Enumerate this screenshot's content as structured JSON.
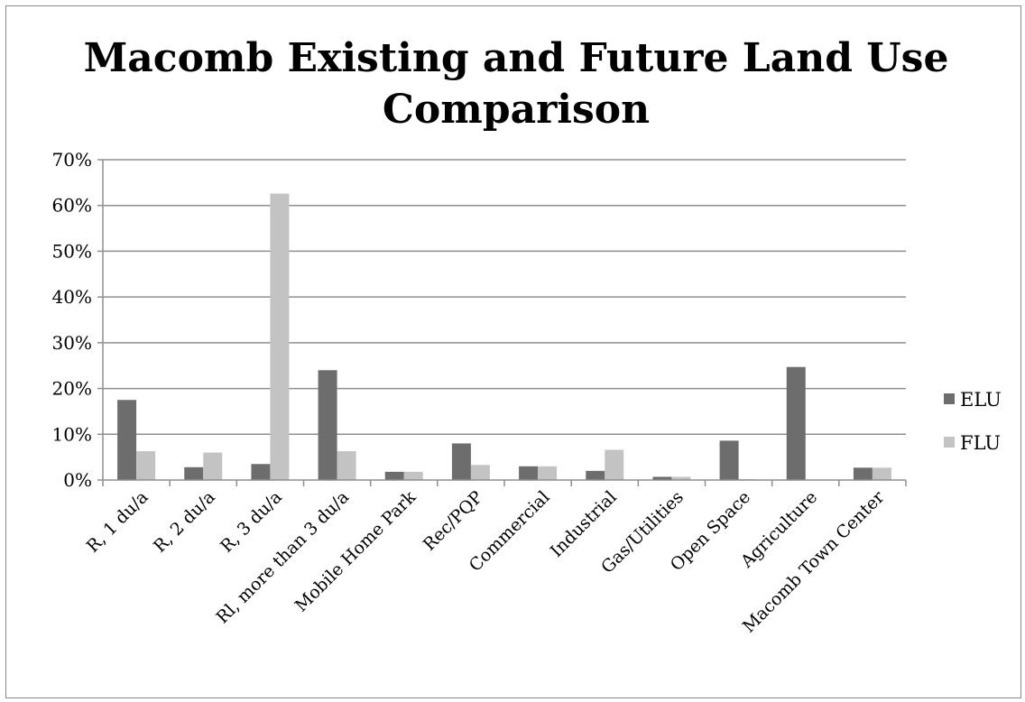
{
  "chart_data": {
    "type": "bar",
    "title": "Macomb Existing and Future Land Use Comparison",
    "title_lines": [
      "Macomb Existing and Future Land Use",
      "Comparison"
    ],
    "xlabel": "",
    "ylabel": "",
    "ylim": [
      0,
      70
    ],
    "yticks": [
      "0%",
      "10%",
      "20%",
      "30%",
      "40%",
      "50%",
      "60%",
      "70%"
    ],
    "grid": true,
    "legend_position": "right",
    "categories": [
      "R, 1 du/a",
      "R, 2 du/a",
      "R, 3 du/a",
      "Rl, more than 3 du/a",
      "Mobile Home Park",
      "Rec/PQP",
      "Commercial",
      "Industrial",
      "Gas/Utilities",
      "Open Space",
      "Agriculture",
      "Macomb Town Center"
    ],
    "series": [
      {
        "name": "ELU",
        "color": "#6d6d6d",
        "values": [
          17.5,
          2.8,
          3.5,
          24.0,
          1.8,
          8.0,
          3.0,
          2.0,
          0.7,
          8.6,
          24.7,
          2.7
        ]
      },
      {
        "name": "FLU",
        "color": "#c3c3c3",
        "values": [
          6.3,
          6.0,
          62.6,
          6.3,
          1.8,
          3.3,
          3.0,
          6.6,
          0.7,
          0.2,
          0.0,
          2.7
        ]
      }
    ]
  }
}
